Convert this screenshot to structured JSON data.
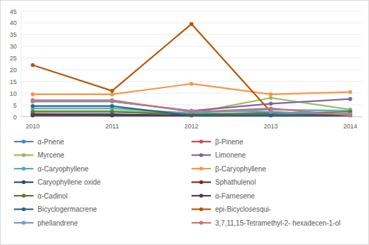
{
  "chart_data": {
    "type": "line",
    "categories": [
      "2010",
      "2011",
      "2012",
      "2013",
      "2014"
    ],
    "ylim": [
      0,
      45
    ],
    "yticks": [
      0,
      5,
      10,
      15,
      20,
      25,
      30,
      35,
      40,
      45
    ],
    "grid": true,
    "legend": "bottom",
    "marker": "circle",
    "series": [
      {
        "name": "α-Pnene",
        "color": "#4f81bd",
        "values": [
          1,
          1,
          0.5,
          1,
          1
        ]
      },
      {
        "name": "β-Pinene",
        "color": "#c0504d",
        "values": [
          0.5,
          0.5,
          0.5,
          0.5,
          1
        ]
      },
      {
        "name": "Myrcene",
        "color": "#9bbb59",
        "values": [
          2.5,
          2.5,
          1.5,
          8,
          3
        ]
      },
      {
        "name": "Limonene",
        "color": "#8064a2",
        "values": [
          6.5,
          6.5,
          2.5,
          5.5,
          7.5
        ]
      },
      {
        "name": "α-Caryophyllene",
        "color": "#4bacc6",
        "values": [
          3.5,
          3.5,
          1.5,
          3,
          2.5
        ]
      },
      {
        "name": "β-Caryophyllene",
        "color": "#f79646",
        "values": [
          9.5,
          9.5,
          14,
          9.5,
          10.5
        ]
      },
      {
        "name": "Caryophyllene oxide",
        "color": "#2c4d75",
        "values": [
          1,
          1,
          0.5,
          0.5,
          0.5
        ]
      },
      {
        "name": "Sphathulenol",
        "color": "#772c2a",
        "values": [
          1,
          0.5,
          0.5,
          0.5,
          0.5
        ]
      },
      {
        "name": "α-Cadinol",
        "color": "#5f7530",
        "values": [
          2,
          2,
          1,
          1.5,
          2
        ]
      },
      {
        "name": "α-Farnesene",
        "color": "#4d3b62",
        "values": [
          0.5,
          0.5,
          0.5,
          0.5,
          0.5
        ]
      },
      {
        "name": "Bicyclogermacrene",
        "color": "#276a7c",
        "values": [
          4.5,
          4.5,
          0.5,
          0.5,
          1
        ]
      },
      {
        "name": "epi-Bicyclosesqui-",
        "color": "#b65708",
        "values": [
          22,
          11,
          39.5,
          2,
          1
        ]
      },
      {
        "name": "phellandrene",
        "color": "#729aca",
        "values": [
          6.5,
          6.5,
          2.5,
          2,
          1
        ]
      },
      {
        "name": "3,7,11,15-Tetramethyl-2- hexadecen-1-ol",
        "color": "#cd7371",
        "values": [
          7,
          7,
          2,
          3.5,
          0.5
        ]
      }
    ]
  }
}
